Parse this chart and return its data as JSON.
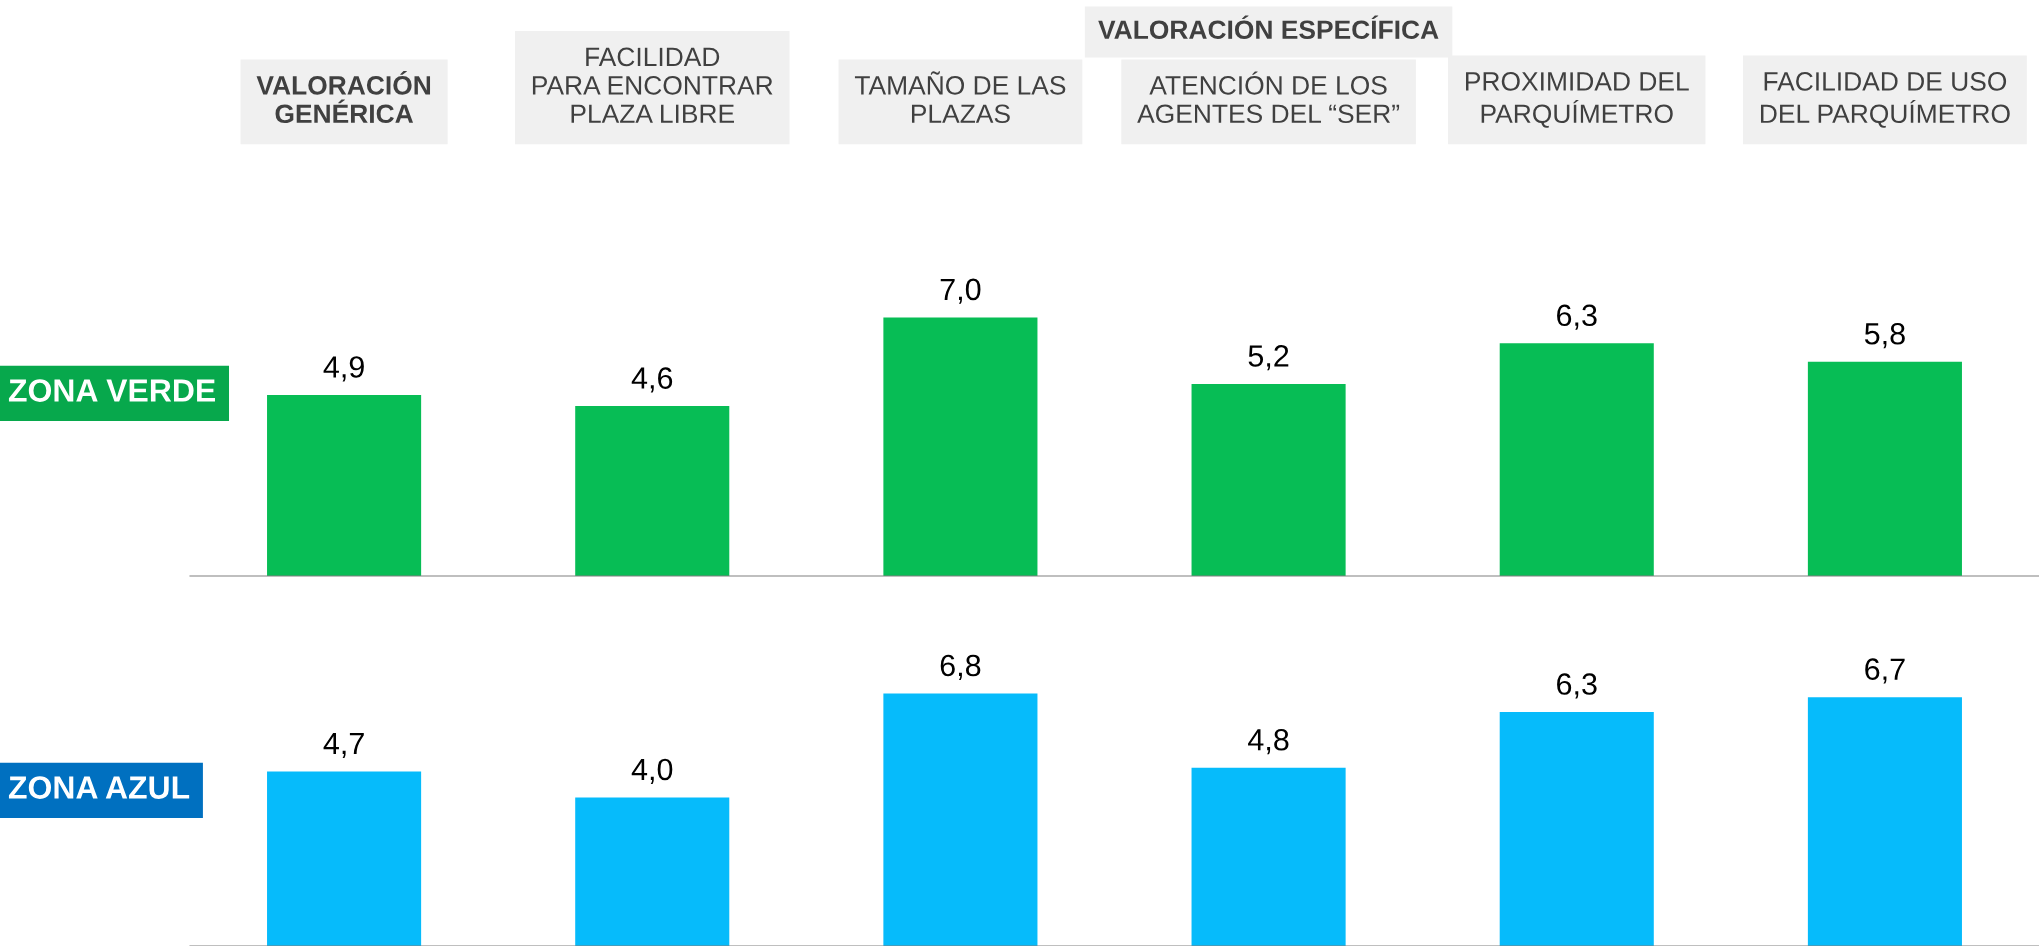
{
  "chart_data": [
    {
      "type": "bar",
      "ylabel": "ZONA VERDE",
      "categories": [
        "VALORACIÓN\nGENÉRICA",
        "FACILIDAD\nPARA ENCONTRAR\nPLAZA LIBRE",
        "TAMAÑO DE LAS\nPLAZAS",
        "ATENCIÓN DE LOS\nAGENTES DEL “SER”",
        "PROXIMIDAD DEL\nPARQUÍMETRO",
        "FACILIDAD DE USO\nDEL PARQUÍMETRO"
      ],
      "values": [
        4.9,
        4.6,
        7.0,
        5.2,
        6.3,
        5.8
      ],
      "value_labels": [
        "4,9",
        "4,6",
        "7,0",
        "5,2",
        "6,3",
        "5,8"
      ],
      "color": "#07bd55",
      "tick_labels": "x",
      "annotations": [
        "VALORACIÓN ESPECÍFICA"
      ]
    },
    {
      "type": "bar",
      "ylabel": "ZONA AZUL",
      "values": [
        4.7,
        4.0,
        6.8,
        4.8,
        6.3,
        6.7
      ],
      "value_labels": [
        "4,7",
        "4,0",
        "6,8",
        "4,8",
        "6,3",
        "6,7"
      ],
      "color": "#06bbfb",
      "tick_labels": false
    }
  ]
}
